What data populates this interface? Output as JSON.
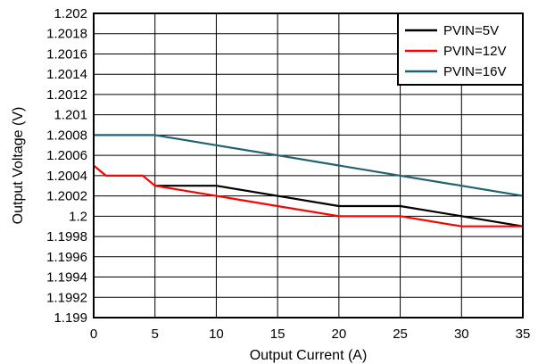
{
  "chart_data": {
    "type": "line",
    "xlabel": "Output Current (A)",
    "ylabel": "Output Voltage (V)",
    "xlim": [
      0,
      35
    ],
    "ylim": [
      1.199,
      1.202
    ],
    "x_ticks": [
      "0",
      "5",
      "10",
      "15",
      "20",
      "25",
      "30",
      "35"
    ],
    "y_ticks": [
      "1.199",
      "1.1992",
      "1.1994",
      "1.1996",
      "1.1998",
      "1.2",
      "1.2002",
      "1.2004",
      "1.2006",
      "1.2008",
      "1.201",
      "1.2012",
      "1.2014",
      "1.2016",
      "1.2018",
      "1.202"
    ],
    "grid": true,
    "legend_position": "top-right",
    "series": [
      {
        "name": "PVIN=5V",
        "color": "#000000",
        "x": [
          5,
          10,
          15,
          20,
          25,
          30,
          35
        ],
        "y": [
          1.2003,
          1.2003,
          1.2002,
          1.2001,
          1.2001,
          1.2,
          1.1999
        ]
      },
      {
        "name": "PVIN=12V",
        "color": "#ff0000",
        "x": [
          0,
          1,
          4,
          5,
          10,
          15,
          20,
          25,
          30,
          35
        ],
        "y": [
          1.2005,
          1.2004,
          1.2004,
          1.2003,
          1.2002,
          1.2001,
          1.2,
          1.2,
          1.1999,
          1.1999
        ]
      },
      {
        "name": "PVIN=16V",
        "color": "#1f6272",
        "x": [
          0,
          5,
          10,
          15,
          20,
          25,
          30,
          35
        ],
        "y": [
          1.2008,
          1.2008,
          1.2007,
          1.2006,
          1.2005,
          1.2004,
          1.2003,
          1.2002
        ]
      }
    ]
  }
}
